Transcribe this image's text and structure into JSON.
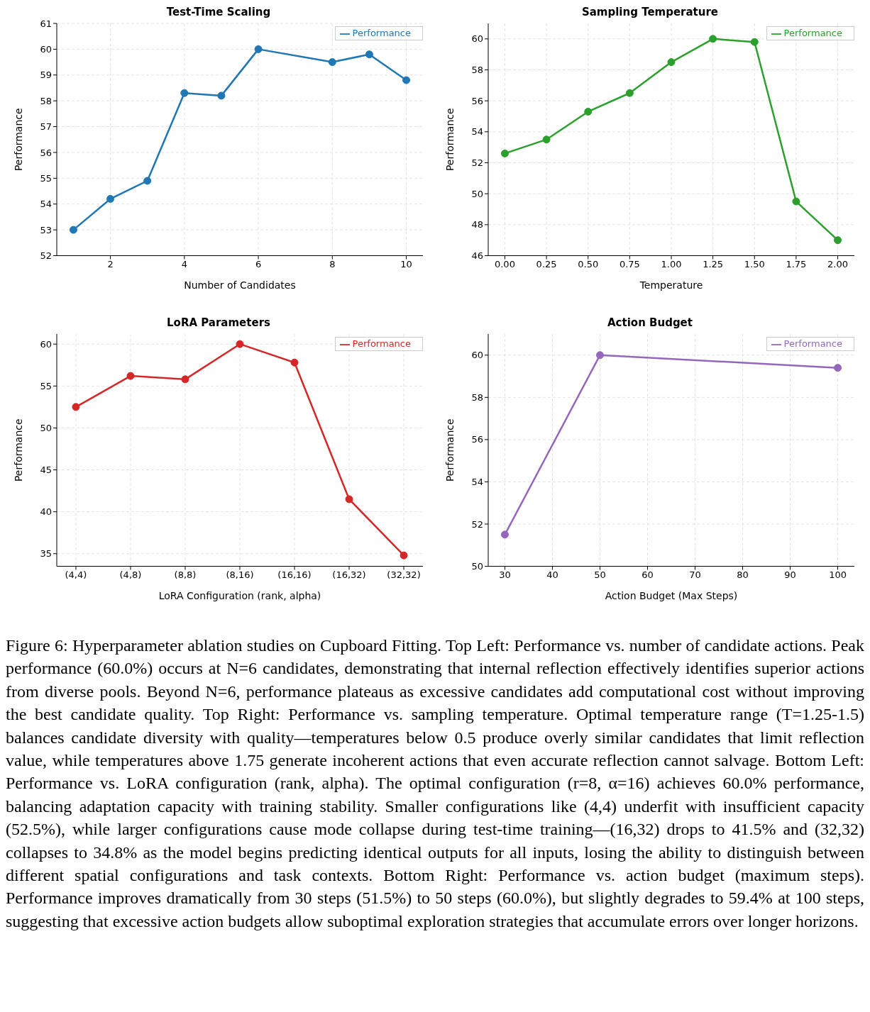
{
  "chart_data": [
    {
      "type": "line",
      "title": "Test-Time Scaling",
      "xlabel": "Number of Candidates",
      "ylabel": "Performance",
      "x": [
        1,
        2,
        3,
        4,
        5,
        6,
        8,
        9,
        10
      ],
      "series": [
        {
          "name": "Performance",
          "color": "#1f77b4",
          "values": [
            53.0,
            54.2,
            54.9,
            58.3,
            58.2,
            60.0,
            59.5,
            59.8,
            58.8
          ]
        }
      ],
      "xlim": [
        0.55,
        10.45
      ],
      "xticks": [
        2,
        4,
        6,
        8,
        10
      ],
      "ylim": [
        52,
        61
      ],
      "yticks": [
        52,
        53,
        54,
        55,
        56,
        57,
        58,
        59,
        60,
        61
      ],
      "grid": true,
      "legend": "top right",
      "marker": "circle",
      "line_style": "solid"
    },
    {
      "type": "line",
      "title": "Sampling Temperature",
      "xlabel": "Temperature",
      "ylabel": "Performance",
      "x": [
        0,
        0.25,
        0.5,
        0.75,
        1.0,
        1.25,
        1.5,
        1.75,
        2.0
      ],
      "series": [
        {
          "name": "Performance",
          "color": "#2ca02c",
          "values": [
            52.6,
            53.5,
            55.3,
            56.5,
            58.5,
            60.0,
            59.8,
            49.5,
            47.0
          ]
        }
      ],
      "xlim": [
        -0.1,
        2.1
      ],
      "xticks": [
        {
          "value": 0,
          "label": "0.00"
        },
        {
          "value": 0.25,
          "label": "0.25"
        },
        {
          "value": 0.5,
          "label": "0.50"
        },
        {
          "value": 0.75,
          "label": "0.75"
        },
        {
          "value": 1,
          "label": "1.00"
        },
        {
          "value": 1.25,
          "label": "1.25"
        },
        {
          "value": 1.5,
          "label": "1.50"
        },
        {
          "value": 1.75,
          "label": "1.75"
        },
        {
          "value": 2,
          "label": "2.00"
        }
      ],
      "ylim": [
        46,
        61
      ],
      "yticks": [
        46,
        48,
        50,
        52,
        54,
        56,
        58,
        60
      ],
      "grid": true,
      "legend": "top right",
      "marker": "circle",
      "line_style": "solid"
    },
    {
      "type": "line",
      "title": "LoRA Parameters",
      "xlabel": "LoRA Configuration (rank, alpha)",
      "ylabel": "Performance",
      "categories": [
        "(4,4)",
        "(4,8)",
        "(8,8)",
        "(8,16)",
        "(16,16)",
        "(16,32)",
        "(32,32)"
      ],
      "series": [
        {
          "name": "Performance",
          "color": "#d62728",
          "values": [
            52.5,
            56.2,
            55.8,
            60.0,
            57.8,
            41.5,
            34.8
          ]
        }
      ],
      "ylim": [
        33.5,
        61.2
      ],
      "yticks": [
        35,
        40,
        45,
        50,
        55,
        60
      ],
      "grid": true,
      "legend": "top right",
      "marker": "circle",
      "line_style": "solid"
    },
    {
      "type": "line",
      "title": "Action Budget",
      "xlabel": "Action Budget (Max Steps)",
      "ylabel": "Performance",
      "x": [
        30,
        50,
        100
      ],
      "series": [
        {
          "name": "Performance",
          "color": "#9467bd",
          "values": [
            51.5,
            60.0,
            59.4
          ]
        }
      ],
      "xlim": [
        26.5,
        103.5
      ],
      "xticks": [
        30,
        40,
        50,
        60,
        70,
        80,
        90,
        100
      ],
      "ylim": [
        50,
        61
      ],
      "yticks": [
        50,
        52,
        54,
        56,
        58,
        60
      ],
      "grid": true,
      "legend": "top right",
      "marker": "circle",
      "line_style": "solid",
      "annotations": [
        "Figure 6: Hyperparameter ablation studies on Cupboard Fitting. Top Left: Performance vs. number of candidate actions. Peak performance (60.0%) occurs at N=6 candidates, demonstrating that internal reflection effectively identifies superior actions from diverse pools. Beyond N=6, performance plateaus as excessive candidates add computational cost without improving the best candidate quality. Top Right: Performance vs. sampling temperature. Optimal temperature range (T=1.25-1.5) balances candidate diversity with quality—temperatures below 0.5 produce overly similar candidates that limit reflection value, while temperatures above 1.75 generate incoherent actions that even accurate reflection cannot salvage. Bottom Left: Performance vs. LoRA configuration (rank, alpha). The optimal configuration (r=8, α=16) achieves 60.0% performance, balancing adaptation capacity with training stability. Smaller configurations like (4,4) underfit with insufficient capacity (52.5%), while larger configurations cause mode collapse during test-time training—(16,32) drops to 41.5% and (32,32) collapses to 34.8% as the model begins predicting identical outputs for all inputs, losing the ability to distinguish between different spatial configurations and task contexts. Bottom Right: Performance vs. action budget (maximum steps). Performance improves dramatically from 30 steps (51.5%) to 50 steps (60.0%), but slightly degrades to 59.4% at 100 steps, suggesting that excessive action budgets allow suboptimal exploration strategies that accumulate errors over longer horizons."
      ]
    }
  ]
}
